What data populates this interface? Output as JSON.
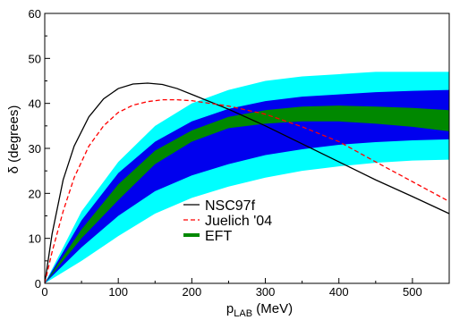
{
  "chart_data": {
    "type": "line",
    "xlabel": {
      "main": "p",
      "sub": "LAB",
      "rest": " (MeV)"
    },
    "ylabel": "δ (degrees)",
    "xlim": [
      0,
      550
    ],
    "ylim": [
      0,
      60
    ],
    "xticks": [
      0,
      100,
      200,
      300,
      400,
      500
    ],
    "yticks": [
      0,
      10,
      20,
      30,
      40,
      50,
      60
    ],
    "grid": false,
    "legend_position": "center-right",
    "bands": [
      {
        "name": "outer band",
        "color": "#00ffff",
        "x": [
          0,
          50,
          100,
          150,
          200,
          250,
          300,
          350,
          400,
          450,
          500,
          550
        ],
        "upper": [
          0,
          16,
          27,
          35,
          40,
          43,
          45,
          46,
          46.5,
          47,
          47,
          47
        ],
        "lower": [
          0,
          5,
          10.5,
          15.5,
          19,
          21.5,
          23.5,
          25,
          26,
          26.8,
          27.3,
          27.5
        ]
      },
      {
        "name": "inner band",
        "color": "#0000ee",
        "x": [
          0,
          50,
          100,
          150,
          200,
          250,
          300,
          350,
          400,
          450,
          500,
          550
        ],
        "upper": [
          0,
          14,
          24.5,
          31.5,
          36,
          38.8,
          40.5,
          41.5,
          42,
          42.5,
          42.8,
          43
        ],
        "lower": [
          0,
          8,
          15,
          20.5,
          24,
          26.5,
          28.5,
          29.8,
          30.8,
          31.4,
          31.8,
          32
        ]
      },
      {
        "name": "EFT",
        "color": "#008800",
        "x": [
          0,
          50,
          100,
          150,
          200,
          250,
          300,
          350,
          400,
          450,
          500,
          550
        ],
        "upper": [
          0,
          12,
          22,
          29.5,
          34,
          37,
          38.5,
          39.3,
          39.5,
          39.3,
          39,
          38.5
        ],
        "lower": [
          0,
          10,
          18.5,
          26.5,
          31.5,
          34.5,
          35.5,
          36,
          36,
          35.5,
          34.8,
          33.8
        ]
      }
    ],
    "series": [
      {
        "name": "NSC97f",
        "color": "#000000",
        "dash": "",
        "x": [
          0,
          10,
          25,
          40,
          60,
          80,
          100,
          120,
          140,
          160,
          180,
          200,
          250,
          300,
          350,
          400,
          450,
          500,
          550
        ],
        "y": [
          0,
          11,
          23,
          30.5,
          37,
          41,
          43.3,
          44.3,
          44.5,
          44.2,
          43.3,
          42,
          38.7,
          35,
          31,
          27,
          23,
          19.3,
          15.5
        ]
      },
      {
        "name": "Juelich '04",
        "color": "#ff0000",
        "dash": "5,3",
        "x": [
          0,
          10,
          25,
          40,
          60,
          80,
          100,
          120,
          140,
          160,
          180,
          200,
          250,
          300,
          350,
          400,
          450,
          500,
          550
        ],
        "y": [
          0,
          7,
          16,
          23.5,
          30.5,
          35,
          38,
          39.6,
          40.4,
          40.8,
          40.8,
          40.6,
          39.4,
          37.6,
          34.8,
          31.5,
          27,
          22.6,
          18.2
        ]
      }
    ],
    "legend": [
      {
        "label": "NSC97f",
        "color": "#000000",
        "dash": "",
        "width": 1.3
      },
      {
        "label": "Juelich '04",
        "color": "#ff0000",
        "dash": "5,3",
        "width": 1.3
      },
      {
        "label": "EFT",
        "color": "#008800",
        "dash": "",
        "width": 4
      }
    ]
  }
}
